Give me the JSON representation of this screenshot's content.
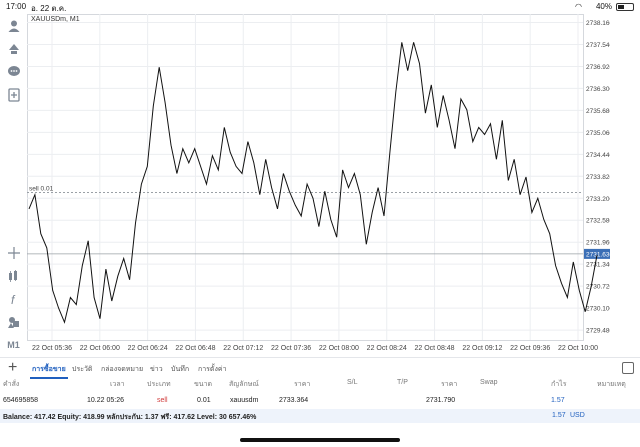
{
  "status": {
    "time": "17:00",
    "date": "อ. 22 ต.ค.",
    "battery": "40%"
  },
  "chart": {
    "symbol": "XAUUSDm, M1",
    "sell_label": "sell 0.01",
    "current_price": "2731.630",
    "price_labels": [
      "2738.160",
      "2737.540",
      "2736.920",
      "2736.300",
      "2735.680",
      "2735.060",
      "2734.440",
      "2733.820",
      "2733.200",
      "2732.580",
      "2731.960",
      "2731.340",
      "2730.720",
      "2730.100",
      "2729.480"
    ],
    "time_labels": [
      "22 Oct 05:36",
      "22 Oct 06:00",
      "22 Oct 06:24",
      "22 Oct 06:48",
      "22 Oct 07:12",
      "22 Oct 07:36",
      "22 Oct 08:00",
      "22 Oct 08:24",
      "22 Oct 08:48",
      "22 Oct 09:12",
      "22 Oct 09:36",
      "22 Oct 10:00"
    ]
  },
  "chart_data": {
    "type": "line",
    "title": "XAUUSDm, M1",
    "ylim": [
      2729.2,
      2738.4
    ],
    "x_labels": [
      "22 Oct 05:36",
      "22 Oct 06:00",
      "22 Oct 06:24",
      "22 Oct 06:48",
      "22 Oct 07:12",
      "22 Oct 07:36",
      "22 Oct 08:00",
      "22 Oct 08:24",
      "22 Oct 08:48",
      "22 Oct 09:12",
      "22 Oct 09:36",
      "22 Oct 10:00"
    ],
    "values": [
      2732.9,
      2733.3,
      2732.2,
      2731.8,
      2730.6,
      2730.1,
      2729.7,
      2730.4,
      2730.2,
      2731.3,
      2732.0,
      2730.4,
      2729.8,
      2731.2,
      2730.3,
      2731.0,
      2731.5,
      2730.9,
      2732.5,
      2733.6,
      2734.1,
      2735.8,
      2736.9,
      2735.9,
      2734.7,
      2733.9,
      2734.6,
      2734.2,
      2734.6,
      2734.1,
      2733.6,
      2734.4,
      2734.0,
      2735.2,
      2734.5,
      2734.1,
      2733.9,
      2734.8,
      2734.2,
      2733.3,
      2734.3,
      2733.5,
      2732.9,
      2733.9,
      2733.4,
      2733.0,
      2732.7,
      2733.6,
      2733.2,
      2732.4,
      2733.4,
      2732.6,
      2732.1,
      2734.0,
      2733.5,
      2733.9,
      2733.3,
      2731.9,
      2732.8,
      2733.5,
      2732.7,
      2734.5,
      2736.2,
      2737.6,
      2736.8,
      2737.6,
      2737.0,
      2735.6,
      2736.4,
      2735.2,
      2736.1,
      2735.4,
      2734.6,
      2736.0,
      2735.7,
      2734.8,
      2735.2,
      2735.0,
      2735.3,
      2734.3,
      2735.4,
      2733.7,
      2734.3,
      2733.3,
      2733.8,
      2732.8,
      2733.2,
      2732.6,
      2732.2,
      2731.3,
      2730.8,
      2730.4,
      2731.4,
      2730.6,
      2730.0,
      2730.7,
      2731.6
    ],
    "annotations": [
      "sell 0.01",
      "2731.630"
    ]
  },
  "tabs": [
    {
      "label": "การซื้อขาย"
    },
    {
      "label": "ประวัติ"
    },
    {
      "label": "กล่องจดหมาย"
    },
    {
      "label": "ข่าว"
    },
    {
      "label": "บันทึก"
    },
    {
      "label": "การตั้งค่า"
    }
  ],
  "table": {
    "headers": [
      "คำสั่ง",
      "เวลา",
      "ประเภท",
      "ขนาด",
      "สัญลักษณ์",
      "ราคา",
      "S/L",
      "T/P",
      "ราคา",
      "Swap",
      "กำไร",
      "หมายเหตุ"
    ],
    "row": {
      "order": "654695858",
      "time": "10.22 05:26",
      "type": "sell",
      "size": "0.01",
      "symbol": "xauusdm",
      "open_price": "2733.364",
      "current_price": "2731.790",
      "profit": "1.57"
    }
  },
  "balance": {
    "text": "Balance: 417.42 Equity: 418.99 หลักประกัน: 1.37 ฟรี: 417.62 Level: 30 657.46%",
    "profit": "1.57",
    "currency": "USD"
  },
  "colors": {
    "accent": "#1f5fbf",
    "sell": "#d03a3a",
    "price_tag": "#3b6fb6"
  }
}
